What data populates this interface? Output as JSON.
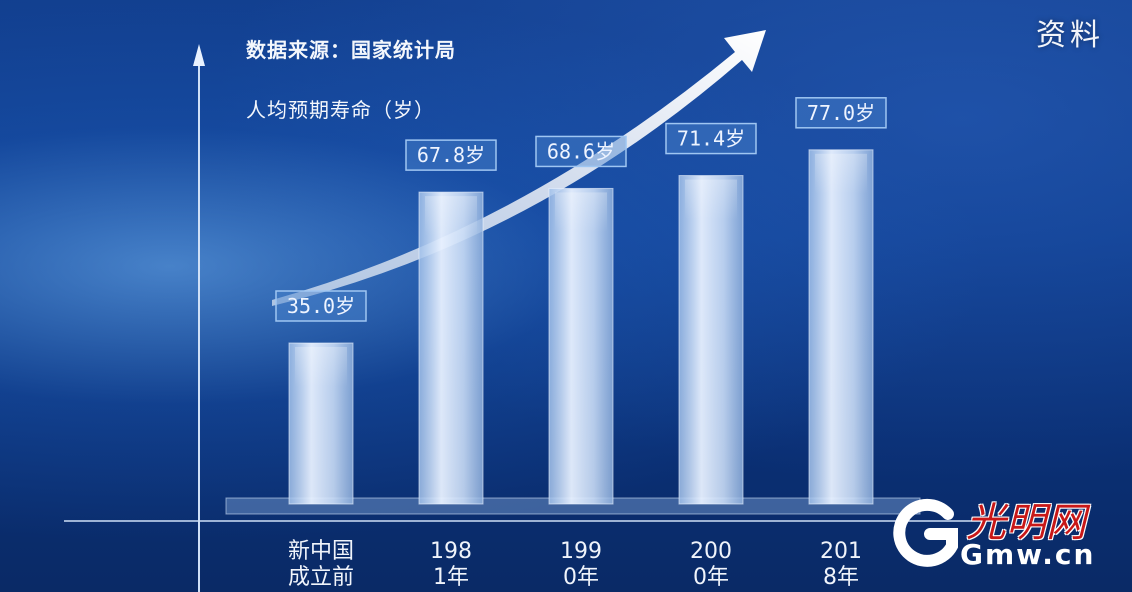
{
  "header": {
    "corner_label": "资料",
    "source": "数据来源：国家统计局"
  },
  "logo": {
    "brush_text": "光明网",
    "domain_text": "Gmw.cn"
  },
  "colors": {
    "background": "#0c3a8a",
    "bar": "#d8e6fa",
    "arrow": "#ffffff",
    "label_box": "#7fb4ee"
  },
  "chart_data": {
    "type": "bar",
    "title": "",
    "xlabel": "",
    "ylabel": "人均预期寿命（岁）",
    "ylim": [
      0,
      80
    ],
    "grid": false,
    "categories": [
      "新中国成立前",
      "1981年",
      "1990年",
      "2000年",
      "2018年"
    ],
    "values": [
      35.0,
      67.8,
      68.6,
      71.4,
      77.0
    ],
    "data_labels": [
      "35.0岁",
      "67.8岁",
      "68.6岁",
      "71.4岁",
      "77.0岁"
    ],
    "trend_arrow": true
  }
}
